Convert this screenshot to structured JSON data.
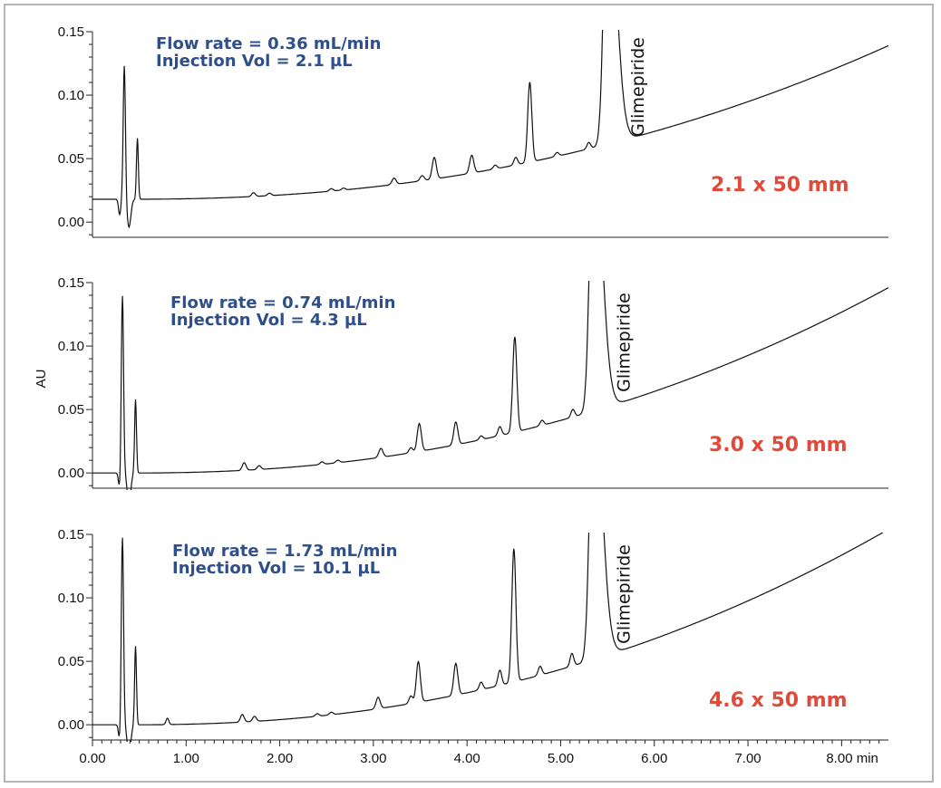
{
  "chart_data": {
    "type": "line",
    "title": "",
    "xlabel": "min",
    "ylabel": "AU",
    "xlim": [
      0,
      8.5
    ],
    "ylim": [
      -0.012,
      0.15
    ],
    "x_ticks": [
      "0.00",
      "1.00",
      "2.00",
      "3.00",
      "4.00",
      "5.00",
      "6.00",
      "7.00",
      "8.00 min"
    ],
    "y_ticks": [
      "0.00",
      "0.05",
      "0.10",
      "0.15"
    ],
    "grid": false,
    "peak_annotation": "Glimepiride",
    "colors": {
      "condition_text": "#2f4f8a",
      "dimension_text": "#e04a3a",
      "trace": "#111111"
    },
    "series": [
      {
        "name": "2.1 x 50 mm",
        "flow_rate": "Flow rate = 0.36 mL/min",
        "injection_vol": "Injection Vol = 2.1 µL",
        "baseline_start": 0.018,
        "baseline_end": 0.135,
        "peaks": [
          {
            "t": 0.34,
            "h": 0.106,
            "w": 0.012
          },
          {
            "t": 0.48,
            "h": 0.048,
            "w": 0.01
          },
          {
            "t": 1.72,
            "h": 0.003,
            "w": 0.02
          },
          {
            "t": 1.89,
            "h": 0.002,
            "w": 0.02
          },
          {
            "t": 2.55,
            "h": 0.002,
            "w": 0.02
          },
          {
            "t": 2.68,
            "h": 0.0015,
            "w": 0.02
          },
          {
            "t": 3.22,
            "h": 0.005,
            "w": 0.022
          },
          {
            "t": 3.52,
            "h": 0.004,
            "w": 0.022
          },
          {
            "t": 3.65,
            "h": 0.017,
            "w": 0.022
          },
          {
            "t": 4.05,
            "h": 0.014,
            "w": 0.022
          },
          {
            "t": 4.3,
            "h": 0.003,
            "w": 0.02
          },
          {
            "t": 4.52,
            "h": 0.006,
            "w": 0.02
          },
          {
            "t": 4.67,
            "h": 0.063,
            "w": 0.022
          },
          {
            "t": 4.96,
            "h": 0.003,
            "w": 0.02
          },
          {
            "t": 5.3,
            "h": 0.005,
            "w": 0.02
          },
          {
            "t": 5.5,
            "h": 0.22,
            "w": 0.04
          }
        ]
      },
      {
        "name": "3.0 x 50 mm",
        "flow_rate": "Flow rate = 0.74 mL/min",
        "injection_vol": "Injection Vol = 4.3 µL",
        "baseline_start": 0.0,
        "baseline_end": 0.142,
        "peaks": [
          {
            "t": 0.32,
            "h": 0.14,
            "w": 0.012
          },
          {
            "t": 0.46,
            "h": 0.058,
            "w": 0.01
          },
          {
            "t": 1.62,
            "h": 0.006,
            "w": 0.02
          },
          {
            "t": 1.78,
            "h": 0.003,
            "w": 0.02
          },
          {
            "t": 2.45,
            "h": 0.002,
            "w": 0.02
          },
          {
            "t": 2.62,
            "h": 0.002,
            "w": 0.02
          },
          {
            "t": 3.08,
            "h": 0.007,
            "w": 0.022
          },
          {
            "t": 3.4,
            "h": 0.004,
            "w": 0.02
          },
          {
            "t": 3.49,
            "h": 0.022,
            "w": 0.022
          },
          {
            "t": 3.88,
            "h": 0.018,
            "w": 0.022
          },
          {
            "t": 4.15,
            "h": 0.003,
            "w": 0.02
          },
          {
            "t": 4.35,
            "h": 0.007,
            "w": 0.02
          },
          {
            "t": 4.51,
            "h": 0.075,
            "w": 0.022
          },
          {
            "t": 4.8,
            "h": 0.004,
            "w": 0.02
          },
          {
            "t": 5.13,
            "h": 0.006,
            "w": 0.02
          },
          {
            "t": 5.35,
            "h": 0.22,
            "w": 0.04
          }
        ]
      },
      {
        "name": "4.6 x 50 mm",
        "flow_rate": "Flow rate = 1.73 mL/min",
        "injection_vol": "Injection Vol = 10.1 µL",
        "baseline_start": 0.0,
        "baseline_end": 0.15,
        "peaks": [
          {
            "t": 0.32,
            "h": 0.148,
            "w": 0.012
          },
          {
            "t": 0.46,
            "h": 0.062,
            "w": 0.01
          },
          {
            "t": 0.8,
            "h": 0.005,
            "w": 0.015
          },
          {
            "t": 1.6,
            "h": 0.006,
            "w": 0.02
          },
          {
            "t": 1.73,
            "h": 0.004,
            "w": 0.02
          },
          {
            "t": 2.4,
            "h": 0.002,
            "w": 0.02
          },
          {
            "t": 2.55,
            "h": 0.002,
            "w": 0.02
          },
          {
            "t": 3.05,
            "h": 0.009,
            "w": 0.022
          },
          {
            "t": 3.4,
            "h": 0.006,
            "w": 0.02
          },
          {
            "t": 3.48,
            "h": 0.032,
            "w": 0.022
          },
          {
            "t": 3.88,
            "h": 0.025,
            "w": 0.022
          },
          {
            "t": 4.15,
            "h": 0.006,
            "w": 0.02
          },
          {
            "t": 4.35,
            "h": 0.012,
            "w": 0.02
          },
          {
            "t": 4.5,
            "h": 0.105,
            "w": 0.022
          },
          {
            "t": 4.78,
            "h": 0.007,
            "w": 0.02
          },
          {
            "t": 5.12,
            "h": 0.01,
            "w": 0.02
          },
          {
            "t": 5.35,
            "h": 0.22,
            "w": 0.04
          }
        ]
      }
    ]
  }
}
